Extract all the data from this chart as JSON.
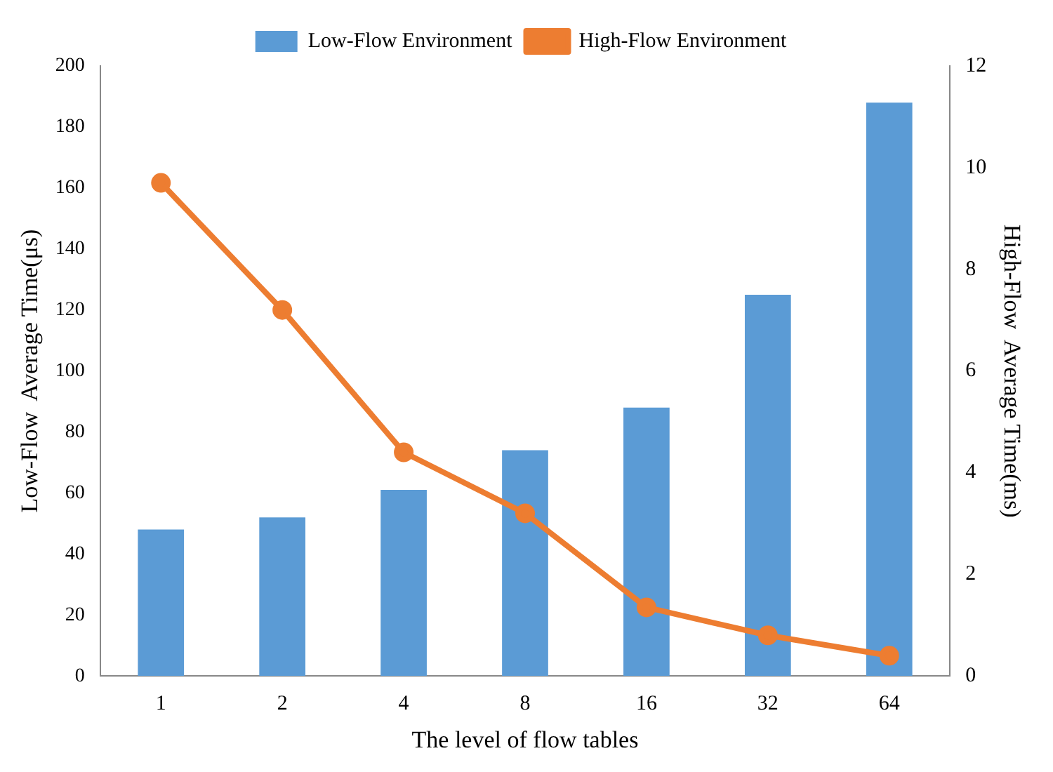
{
  "chart_data": {
    "type": "bar",
    "xlabel": "The level of flow tables",
    "ylabel": "Low-Flow  Average Time(μs)",
    "y2label": "High-Flow  Average Time(ms)",
    "categories": [
      "1",
      "2",
      "4",
      "8",
      "16",
      "32",
      "64"
    ],
    "series": [
      {
        "name": "Low-Flow Environment",
        "color": "#5b9bd5",
        "values": [
          48,
          52,
          61,
          74,
          88,
          125,
          188
        ]
      },
      {
        "name": "High-Flow Environment",
        "type": "line",
        "axis": "y2",
        "color": "#ed7d31",
        "marker": "circle",
        "values": [
          9.7,
          7.2,
          4.4,
          3.2,
          1.35,
          0.8,
          0.4
        ]
      }
    ],
    "ylim": [
      0,
      200
    ],
    "yticks": [
      0,
      20,
      40,
      60,
      80,
      100,
      120,
      140,
      160,
      180,
      200
    ],
    "y2lim": [
      0,
      12
    ],
    "y2ticks": [
      0,
      2,
      4,
      6,
      8,
      10,
      12
    ],
    "grid": false,
    "legend": "top"
  }
}
